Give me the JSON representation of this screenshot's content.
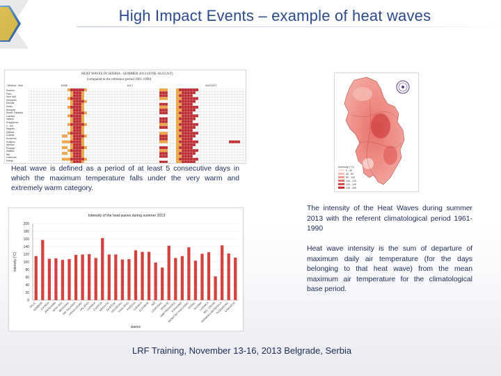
{
  "slide": {
    "title": "High Impact Events – example of heat waves",
    "definition": "Heat wave is defined as a period of at least 5 consecutive days in which the maximum temperature falls under the very warm and extremely warm category.",
    "intensity_caption": "The intensity of the Heat Waves during summer 2013 with the referent climatological period 1961-1990",
    "intensity_definition": "Heat wave intensity is the sum of departure of maximum daily air temperature (for the days belonging to that heat wave) from the mean maximum air temperature for the climatological base period.",
    "footer": "LRF Training, November 13-16, 2013 Belgrade, Serbia"
  },
  "table": {
    "title_line1": "HEAT WAVES IN SERBIA - SUMMER 2013 (JUNE-AUGUST)",
    "title_line2": "(compared to the reference period 1961-1990)",
    "header_col": "Meteor. Stat.",
    "months": [
      "JUNE",
      "JULY",
      "AUGUST"
    ],
    "stations": [
      "Sombor",
      "Palic",
      "Novi Sad",
      "Zrenjanin",
      "Kikinda",
      "Vrsac",
      "Beograd",
      "Smed. Palanka",
      "Loznica",
      "Valjevo",
      "Kragujevac",
      "C. Vrh",
      "Negotin",
      "Zajecar",
      "Cuprija",
      "Krusevac",
      "Kraljevo",
      "Sjenica",
      "Pozega",
      "Zlatibor",
      "Nis",
      "Leskovac",
      "Vranje",
      "Dimitrovgrad",
      "Kopaonik",
      "Dimitrovgrad"
    ],
    "colors": {
      "very_warm": "#f2a33a",
      "extremely_warm": "#c1272d",
      "none": "#ffffff"
    }
  },
  "map": {
    "legend_title": "Intensity (°C)",
    "legend": [
      {
        "label": "0 - 40",
        "color": "#fbe3e1"
      },
      {
        "label": "40 - 80",
        "color": "#f7c0bb"
      },
      {
        "label": "80 - 100",
        "color": "#f19b93"
      },
      {
        "label": "100 - 120",
        "color": "#e8726a"
      },
      {
        "label": "120 - 140",
        "color": "#dc4c47"
      },
      {
        "label": "140 - 160",
        "color": "#c72e2c"
      }
    ]
  },
  "chart_data": {
    "type": "bar",
    "title": "Intensity of the heat waves during summer 2013",
    "ylabel": "intensity (°C)",
    "xlabel": "station",
    "ylim": [
      0,
      200
    ],
    "yticks": [
      0,
      20,
      40,
      60,
      80,
      100,
      120,
      140,
      160,
      180,
      200
    ],
    "bar_color": "#d2423f",
    "categories": [
      "PALIĆ",
      "SOMBOR",
      "KIKINDA",
      "ZRENJANIN",
      "NOVI SAD",
      "BEOGRAD",
      "SM. PALANKA",
      "KRAGUJEVAC",
      "VALJEVO",
      "LOZNICA",
      "ĆUPRIJA",
      "NEGOTIN",
      "ZAJEČAR",
      "KRUŠEVAC",
      "KRALJEVO",
      "POŽEGA",
      "SJENICA",
      "ZLATIBOR",
      "NIŠ",
      "LESKOVAC",
      "VRANJE",
      "DIMITROVGRAD",
      "KOPAONIK",
      "BANATSKI KARLOVAC",
      "VRŠAC",
      "RUDNIK",
      "LOZNICA",
      "BEL. CRKVA",
      "SREMSKA MITROVICA",
      "POŽAREVAC",
      "GRADIŠTE"
    ],
    "values": [
      115,
      157,
      108,
      109,
      105,
      107,
      118,
      119,
      120,
      110,
      162,
      119,
      119,
      106,
      107,
      130,
      126,
      126,
      98,
      85,
      142,
      110,
      115,
      138,
      103,
      121,
      125,
      62,
      143,
      122,
      111
    ]
  }
}
